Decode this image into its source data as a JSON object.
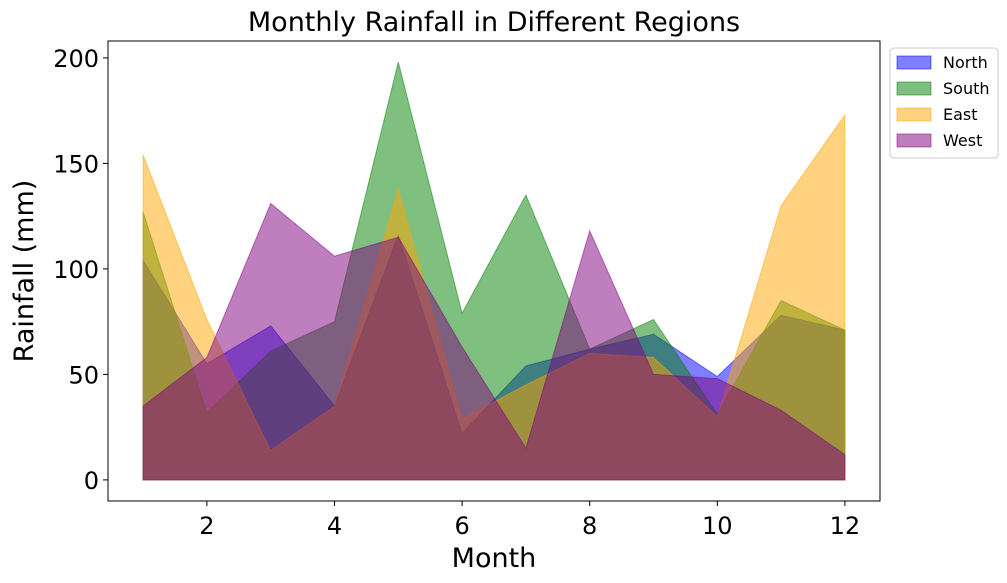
{
  "chart_data": {
    "type": "area",
    "title": "Monthly Rainfall in Different Regions",
    "xlabel": "Month",
    "ylabel": "Rainfall (mm)",
    "x": [
      1,
      2,
      3,
      4,
      5,
      6,
      7,
      8,
      9,
      10,
      11,
      12
    ],
    "xlim": [
      0.45,
      12.55
    ],
    "ylim": [
      -10,
      208
    ],
    "xticks": [
      2,
      4,
      6,
      8,
      10,
      12
    ],
    "yticks": [
      0,
      50,
      100,
      150,
      200
    ],
    "grid": false,
    "legend_position": "outside top-right",
    "series": [
      {
        "name": "North",
        "color": "#0000ff",
        "values": [
          104,
          55,
          73,
          35,
          116,
          22,
          54,
          62,
          69,
          49,
          78,
          71
        ]
      },
      {
        "name": "South",
        "color": "#008000",
        "values": [
          127,
          32,
          61,
          75,
          198,
          79,
          135,
          62,
          76,
          31,
          85,
          71
        ]
      },
      {
        "name": "East",
        "color": "#ffa500",
        "values": [
          154,
          76,
          14,
          35,
          138,
          29,
          45,
          60,
          58,
          30,
          130,
          173
        ]
      },
      {
        "name": "West",
        "color": "#800080",
        "values": [
          35,
          58,
          131,
          106,
          115,
          63,
          15,
          118,
          50,
          48,
          33,
          12
        ]
      }
    ]
  }
}
